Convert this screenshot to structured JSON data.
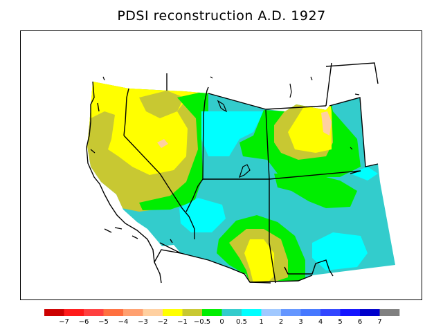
{
  "title": "PDSI reconstruction A.D. 1927",
  "colorbar": {
    "colors": [
      "#cc0000",
      "#ff1a1a",
      "#ff4040",
      "#ff7040",
      "#ffa070",
      "#ffd0a0",
      "#ffff00",
      "#c8c832",
      "#00ee00",
      "#33cccc",
      "#00ffff",
      "#a0c8ff",
      "#6496ff",
      "#4678ff",
      "#3246ff",
      "#1414ff",
      "#0000cc",
      "#808080"
    ],
    "labels": [
      "−7",
      "−6",
      "−5",
      "−4",
      "−3",
      "−2",
      "−1",
      "−0.5",
      "0",
      "0.5",
      "1",
      "2",
      "3",
      "4",
      "5",
      "6",
      "7"
    ]
  }
}
